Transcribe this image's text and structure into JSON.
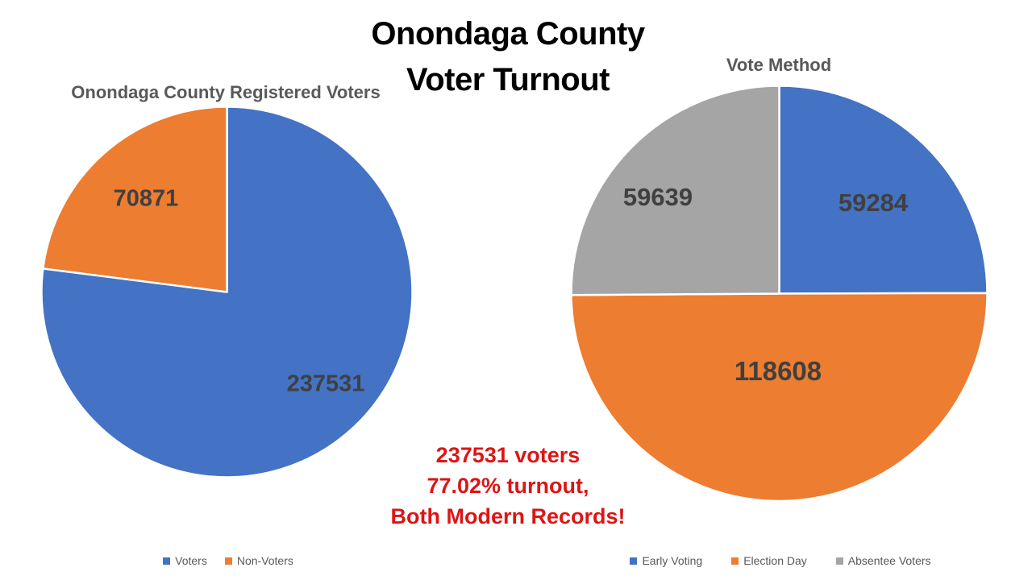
{
  "title": {
    "line1": "Onondaga County",
    "line2": "Voter Turnout"
  },
  "annotation": {
    "line1": "237531 voters",
    "line2": "77.02% turnout,",
    "line3": "Both Modern Records!",
    "color": "#dd1515"
  },
  "colors": {
    "blue": "#4472C4",
    "orange": "#ED7D31",
    "gray": "#A5A5A5",
    "data_label": "#404040",
    "chart_title": "#595959",
    "legend_text": "#595959",
    "slice_border": "#FFFFFF"
  },
  "chart_data": [
    {
      "type": "pie",
      "title": "Onondaga County Registered Voters",
      "categories": [
        "Voters",
        "Non-Voters"
      ],
      "values": [
        237531,
        70871
      ],
      "colors": [
        "#4472C4",
        "#ED7D31"
      ],
      "data_labels": [
        "237531",
        "70871"
      ],
      "start_angle_deg": 0,
      "direction": "clockwise",
      "legend_position": "bottom"
    },
    {
      "type": "pie",
      "title": "Vote Method",
      "categories": [
        "Early Voting",
        "Election Day",
        "Absentee Voters"
      ],
      "values": [
        59284,
        118608,
        59639
      ],
      "colors": [
        "#4472C4",
        "#ED7D31",
        "#A5A5A5"
      ],
      "data_labels": [
        "59284",
        "118608",
        "59639"
      ],
      "start_angle_deg": 0,
      "direction": "clockwise",
      "legend_position": "bottom"
    }
  ]
}
